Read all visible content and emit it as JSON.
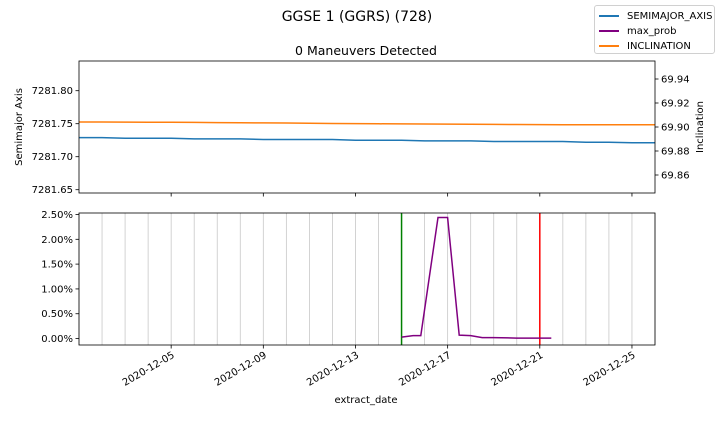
{
  "figure": {
    "suptitle": "GGSE 1 (GGRS) (728)"
  },
  "legend": [
    {
      "name": "SEMIMAJOR_AXIS",
      "color": "#1f77b4"
    },
    {
      "name": "max_prob",
      "color": "#800080"
    },
    {
      "name": "INCLINATION",
      "color": "#ff7f0e"
    }
  ],
  "chart_data": [
    {
      "type": "line",
      "title": "0 Maneuvers Detected",
      "xlim": [
        "2020-12-01",
        "2020-12-26"
      ],
      "ylabel": "Semimajor Axis",
      "ylim": [
        7281.645,
        7281.845
      ],
      "yticks": [
        "7281.65",
        "7281.70",
        "7281.75",
        "7281.80"
      ],
      "ylabel_right": "Inclination",
      "ylim_right": [
        69.845,
        69.955
      ],
      "yticks_right": [
        "69.86",
        "69.88",
        "69.90",
        "69.92",
        "69.94"
      ],
      "series": [
        {
          "name": "SEMIMAJOR_AXIS",
          "axis": "left",
          "color": "#1f77b4",
          "x": [
            "2020-12-01",
            "2020-12-02",
            "2020-12-03",
            "2020-12-04",
            "2020-12-05",
            "2020-12-06",
            "2020-12-07",
            "2020-12-08",
            "2020-12-09",
            "2020-12-10",
            "2020-12-11",
            "2020-12-12",
            "2020-12-13",
            "2020-12-14",
            "2020-12-15",
            "2020-12-16",
            "2020-12-17",
            "2020-12-18",
            "2020-12-19",
            "2020-12-20",
            "2020-12-21",
            "2020-12-22",
            "2020-12-23",
            "2020-12-24",
            "2020-12-25",
            "2020-12-26"
          ],
          "y": [
            7281.729,
            7281.729,
            7281.728,
            7281.728,
            7281.728,
            7281.727,
            7281.727,
            7281.727,
            7281.726,
            7281.726,
            7281.726,
            7281.726,
            7281.725,
            7281.725,
            7281.725,
            7281.724,
            7281.724,
            7281.724,
            7281.723,
            7281.723,
            7281.723,
            7281.723,
            7281.722,
            7281.722,
            7281.721,
            7281.721
          ]
        },
        {
          "name": "INCLINATION",
          "axis": "right",
          "color": "#ff7f0e",
          "x": [
            "2020-12-01",
            "2020-12-02",
            "2020-12-03",
            "2020-12-04",
            "2020-12-05",
            "2020-12-06",
            "2020-12-07",
            "2020-12-08",
            "2020-12-09",
            "2020-12-10",
            "2020-12-11",
            "2020-12-12",
            "2020-12-13",
            "2020-12-14",
            "2020-12-15",
            "2020-12-16",
            "2020-12-17",
            "2020-12-18",
            "2020-12-19",
            "2020-12-20",
            "2020-12-21",
            "2020-12-22",
            "2020-12-23",
            "2020-12-24",
            "2020-12-25",
            "2020-12-26"
          ],
          "y": [
            69.9042,
            69.9042,
            69.9041,
            69.904,
            69.9039,
            69.9038,
            69.9037,
            69.9036,
            69.9034,
            69.9033,
            69.9031,
            69.9029,
            69.9028,
            69.9027,
            69.9026,
            69.9025,
            69.9024,
            69.9023,
            69.9022,
            69.9021,
            69.902,
            69.9019,
            69.9019,
            69.9018,
            69.9018,
            69.9018
          ]
        }
      ]
    },
    {
      "type": "line",
      "xlabel": "extract_date",
      "xlim": [
        "2020-12-01",
        "2020-12-26"
      ],
      "xticks": [
        "2020-12-05",
        "2020-12-09",
        "2020-12-13",
        "2020-12-17",
        "2020-12-21",
        "2020-12-25"
      ],
      "ylim": [
        -0.0013,
        0.0253
      ],
      "yticks": [
        "0.00%",
        "0.50%",
        "1.00%",
        "1.50%",
        "2.00%",
        "2.50%"
      ],
      "ytick_values": [
        0,
        0.005,
        0.01,
        0.015,
        0.02,
        0.025
      ],
      "grid_lines_x": [
        "2020-12-01",
        "2020-12-02",
        "2020-12-03",
        "2020-12-04",
        "2020-12-05",
        "2020-12-06",
        "2020-12-07",
        "2020-12-08",
        "2020-12-09",
        "2020-12-10",
        "2020-12-11",
        "2020-12-12",
        "2020-12-13",
        "2020-12-14",
        "2020-12-15",
        "2020-12-16",
        "2020-12-17",
        "2020-12-18",
        "2020-12-19",
        "2020-12-20",
        "2020-12-21",
        "2020-12-22",
        "2020-12-23",
        "2020-12-24",
        "2020-12-25",
        "2020-12-26"
      ],
      "series": [
        {
          "name": "max_prob",
          "color": "#800080",
          "x": [
            "2020-12-15",
            "2020-12-15 12:00",
            "2020-12-15 20:00",
            "2020-12-16 14:00",
            "2020-12-17 00:00",
            "2020-12-17 12:00",
            "2020-12-18 00:00",
            "2020-12-18 12:00",
            "2020-12-19 00:00",
            "2020-12-20 00:00",
            "2020-12-21 00:00",
            "2020-12-21 12:00"
          ],
          "y": [
            0.0003,
            0.0006,
            0.0006,
            0.0244,
            0.0244,
            0.0007,
            0.0006,
            0.0002,
            0.0002,
            0.0001,
            0.0001,
            0.0001
          ]
        }
      ],
      "vlines": [
        {
          "x": "2020-12-15",
          "color": "#008000"
        },
        {
          "x": "2020-12-21",
          "color": "#ff0000"
        }
      ]
    }
  ]
}
